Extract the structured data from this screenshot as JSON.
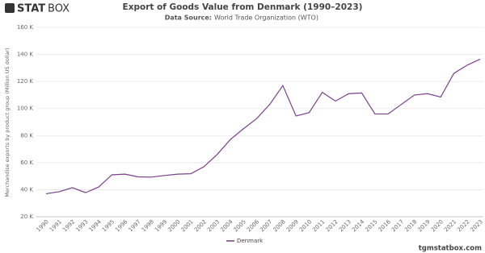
{
  "logo": {
    "mark": "STAT",
    "rest": "BOX"
  },
  "footer": "tgmstatbox.com",
  "chart_data": {
    "type": "line",
    "title": "Export of Goods Value from Denmark (1990–2023)",
    "source_label": "Data Source:",
    "source": "World Trade Organization (WTO)",
    "y_label": "Merchandise exports by product group (Million US dollar)",
    "categories": [
      "1990",
      "1991",
      "1992",
      "1993",
      "1994",
      "1995",
      "1996",
      "1997",
      "1998",
      "1999",
      "2000",
      "2001",
      "2002",
      "2003",
      "2004",
      "2005",
      "2006",
      "2007",
      "2008",
      "2009",
      "2010",
      "2011",
      "2012",
      "2013",
      "2014",
      "2015",
      "2016",
      "2017",
      "2018",
      "2019",
      "2020",
      "2021",
      "2022",
      "2023"
    ],
    "series": [
      {
        "name": "Denmark",
        "color": "#7b3f8c",
        "values": [
          37000,
          38500,
          41500,
          37800,
          42000,
          51000,
          51500,
          49500,
          49300,
          50500,
          51500,
          51800,
          57000,
          66000,
          77000,
          85000,
          92500,
          103000,
          117000,
          94500,
          97000,
          112000,
          105500,
          111000,
          111500,
          96000,
          96000,
          103000,
          110000,
          111000,
          108500,
          126000,
          132000,
          136500
        ]
      }
    ],
    "ylim": [
      20000,
      160000
    ],
    "yticks": [
      {
        "value": 20000,
        "label": "20 K"
      },
      {
        "value": 40000,
        "label": "40 K"
      },
      {
        "value": 60000,
        "label": "60 K"
      },
      {
        "value": 80000,
        "label": "80 K"
      },
      {
        "value": 100000,
        "label": "100 K"
      },
      {
        "value": 120000,
        "label": "120 K"
      },
      {
        "value": 140000,
        "label": "140 K"
      },
      {
        "value": 160000,
        "label": "160 K"
      }
    ],
    "grid": true
  }
}
